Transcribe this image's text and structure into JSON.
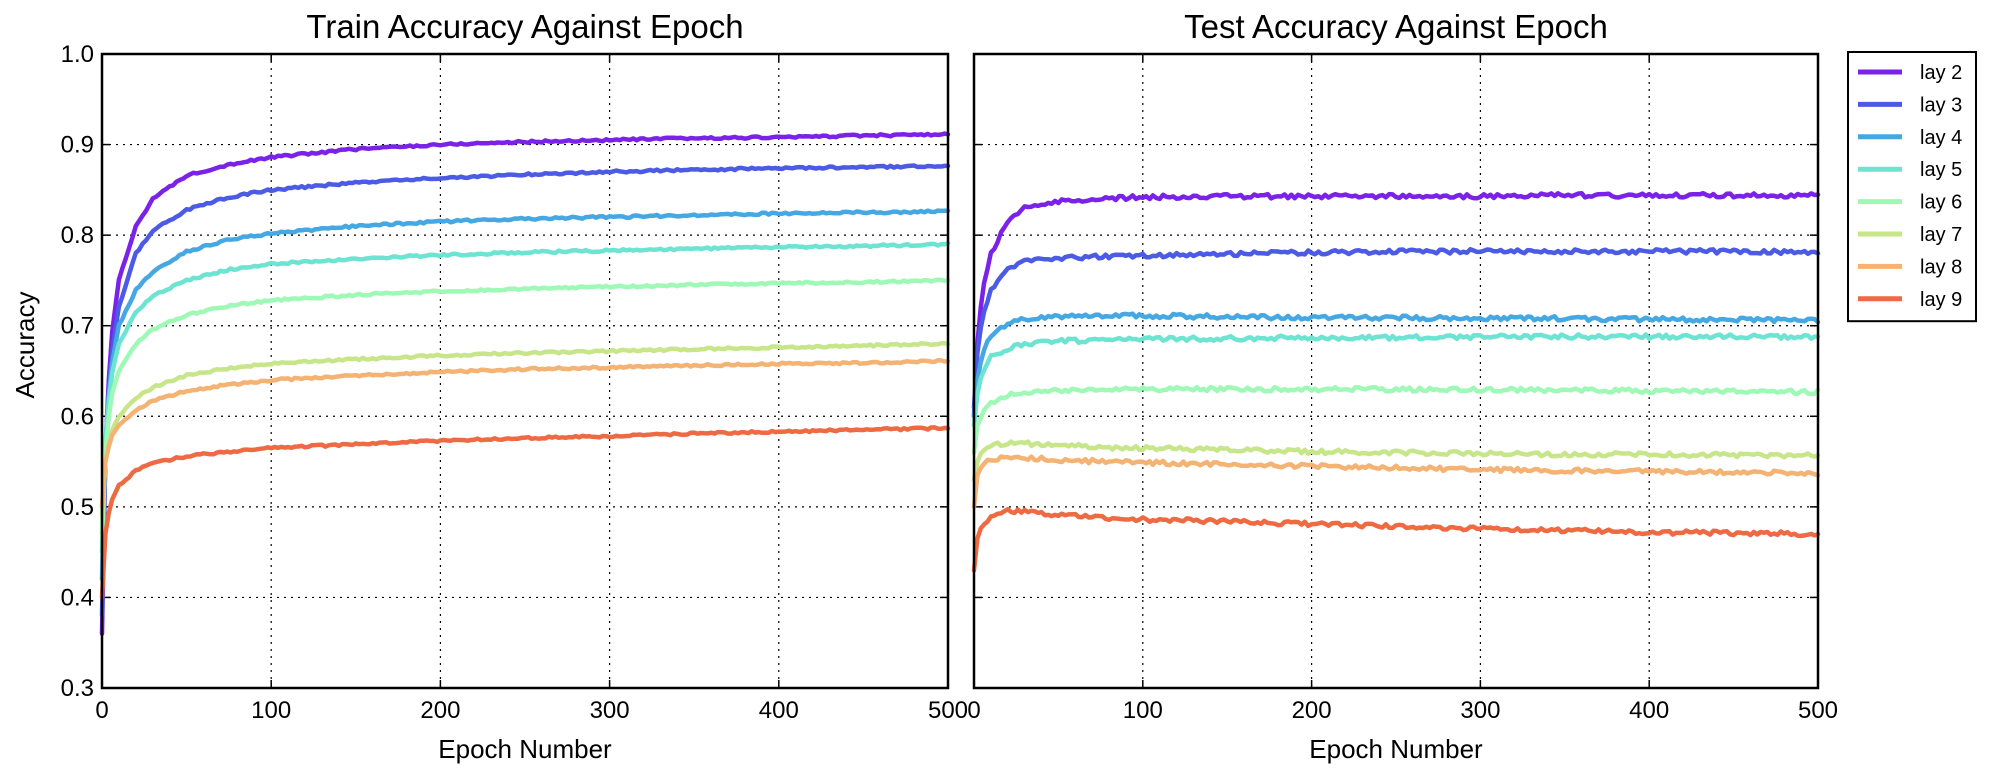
{
  "chart_data": [
    {
      "type": "line",
      "title": "Train Accuracy Against Epoch",
      "xlabel": "Epoch Number",
      "ylabel": "Accuracy",
      "xlim": [
        0,
        500
      ],
      "ylim": [
        0.3,
        1.0
      ],
      "xticks": [
        "0",
        "100",
        "200",
        "300",
        "400",
        "500"
      ],
      "yticks": [
        "0.3",
        "0.4",
        "0.5",
        "0.6",
        "0.7",
        "0.8",
        "0.9",
        "1.0"
      ],
      "grid": true,
      "x": [
        0,
        2,
        5,
        10,
        20,
        30,
        50,
        75,
        100,
        150,
        200,
        250,
        300,
        350,
        400,
        450,
        500
      ],
      "series": [
        {
          "name": "lay 2",
          "color": "#7b22e8",
          "values": [
            0.36,
            0.56,
            0.68,
            0.75,
            0.81,
            0.84,
            0.866,
            0.878,
            0.886,
            0.895,
            0.9,
            0.903,
            0.905,
            0.907,
            0.908,
            0.91,
            0.911
          ]
        },
        {
          "name": "lay 3",
          "color": "#4c5be6",
          "values": [
            0.38,
            0.56,
            0.66,
            0.72,
            0.78,
            0.805,
            0.828,
            0.842,
            0.85,
            0.858,
            0.863,
            0.867,
            0.87,
            0.872,
            0.874,
            0.875,
            0.877
          ]
        },
        {
          "name": "lay 4",
          "color": "#45a8e3",
          "values": [
            0.42,
            0.57,
            0.65,
            0.7,
            0.74,
            0.76,
            0.782,
            0.795,
            0.802,
            0.81,
            0.815,
            0.818,
            0.82,
            0.822,
            0.824,
            0.825,
            0.826
          ]
        },
        {
          "name": "lay 5",
          "color": "#6de3d1",
          "values": [
            0.45,
            0.57,
            0.64,
            0.68,
            0.715,
            0.733,
            0.75,
            0.762,
            0.768,
            0.774,
            0.778,
            0.781,
            0.783,
            0.785,
            0.787,
            0.788,
            0.79
          ]
        },
        {
          "name": "lay 6",
          "color": "#9ef9b6",
          "values": [
            0.47,
            0.56,
            0.62,
            0.65,
            0.68,
            0.696,
            0.712,
            0.722,
            0.728,
            0.734,
            0.738,
            0.741,
            0.743,
            0.745,
            0.747,
            0.748,
            0.75
          ]
        },
        {
          "name": "lay 7",
          "color": "#c7e68a",
          "values": [
            0.49,
            0.55,
            0.58,
            0.6,
            0.62,
            0.632,
            0.645,
            0.653,
            0.658,
            0.663,
            0.667,
            0.67,
            0.672,
            0.674,
            0.676,
            0.678,
            0.68
          ]
        },
        {
          "name": "lay 8",
          "color": "#f4b273",
          "values": [
            0.5,
            0.55,
            0.575,
            0.59,
            0.607,
            0.617,
            0.628,
            0.635,
            0.64,
            0.645,
            0.649,
            0.652,
            0.654,
            0.656,
            0.658,
            0.659,
            0.661
          ]
        },
        {
          "name": "lay 9",
          "color": "#ee6a43",
          "values": [
            0.4,
            0.47,
            0.505,
            0.523,
            0.54,
            0.548,
            0.556,
            0.561,
            0.565,
            0.569,
            0.573,
            0.576,
            0.578,
            0.581,
            0.583,
            0.585,
            0.587
          ]
        }
      ]
    },
    {
      "type": "line",
      "title": "Test Accuracy Against Epoch",
      "xlabel": "Epoch Number",
      "ylabel": "",
      "xlim": [
        0,
        500
      ],
      "ylim": [
        0.3,
        1.0
      ],
      "xticks": [
        "0",
        "100",
        "200",
        "300",
        "400",
        "500"
      ],
      "grid": true,
      "x": [
        0,
        2,
        5,
        10,
        20,
        30,
        50,
        75,
        100,
        150,
        200,
        250,
        300,
        350,
        400,
        450,
        500
      ],
      "series": [
        {
          "name": "lay 2",
          "color": "#7b22e8",
          "values": [
            0.6,
            0.68,
            0.74,
            0.78,
            0.815,
            0.83,
            0.837,
            0.84,
            0.842,
            0.843,
            0.843,
            0.843,
            0.843,
            0.844,
            0.844,
            0.844,
            0.844
          ]
        },
        {
          "name": "lay 3",
          "color": "#4c5be6",
          "values": [
            0.61,
            0.67,
            0.71,
            0.74,
            0.762,
            0.771,
            0.775,
            0.776,
            0.777,
            0.779,
            0.781,
            0.782,
            0.782,
            0.782,
            0.782,
            0.782,
            0.781
          ]
        },
        {
          "name": "lay 4",
          "color": "#45a8e3",
          "values": [
            0.6,
            0.64,
            0.67,
            0.69,
            0.703,
            0.708,
            0.71,
            0.711,
            0.711,
            0.71,
            0.709,
            0.709,
            0.708,
            0.708,
            0.707,
            0.707,
            0.706
          ]
        },
        {
          "name": "lay 5",
          "color": "#6de3d1",
          "values": [
            0.59,
            0.625,
            0.65,
            0.665,
            0.675,
            0.68,
            0.683,
            0.684,
            0.685,
            0.686,
            0.687,
            0.687,
            0.688,
            0.688,
            0.688,
            0.688,
            0.688
          ]
        },
        {
          "name": "lay 6",
          "color": "#9ef9b6",
          "values": [
            0.56,
            0.59,
            0.605,
            0.615,
            0.623,
            0.627,
            0.629,
            0.63,
            0.63,
            0.63,
            0.63,
            0.63,
            0.629,
            0.629,
            0.628,
            0.628,
            0.627
          ]
        },
        {
          "name": "lay 7",
          "color": "#c7e68a",
          "values": [
            0.53,
            0.55,
            0.56,
            0.567,
            0.571,
            0.57,
            0.568,
            0.566,
            0.565,
            0.563,
            0.561,
            0.56,
            0.559,
            0.558,
            0.558,
            0.557,
            0.557
          ]
        },
        {
          "name": "lay 8",
          "color": "#f4b273",
          "values": [
            0.5,
            0.535,
            0.548,
            0.552,
            0.555,
            0.554,
            0.552,
            0.55,
            0.549,
            0.547,
            0.545,
            0.543,
            0.541,
            0.54,
            0.539,
            0.538,
            0.537
          ]
        },
        {
          "name": "lay 9",
          "color": "#ee6a43",
          "values": [
            0.43,
            0.465,
            0.48,
            0.49,
            0.496,
            0.495,
            0.491,
            0.488,
            0.486,
            0.484,
            0.481,
            0.478,
            0.476,
            0.474,
            0.472,
            0.471,
            0.47
          ]
        }
      ]
    }
  ],
  "legend": {
    "placement": "outside-right-top",
    "entries": [
      "lay 2",
      "lay 3",
      "lay 4",
      "lay 5",
      "lay 6",
      "lay 7",
      "lay 8",
      "lay 9"
    ]
  }
}
